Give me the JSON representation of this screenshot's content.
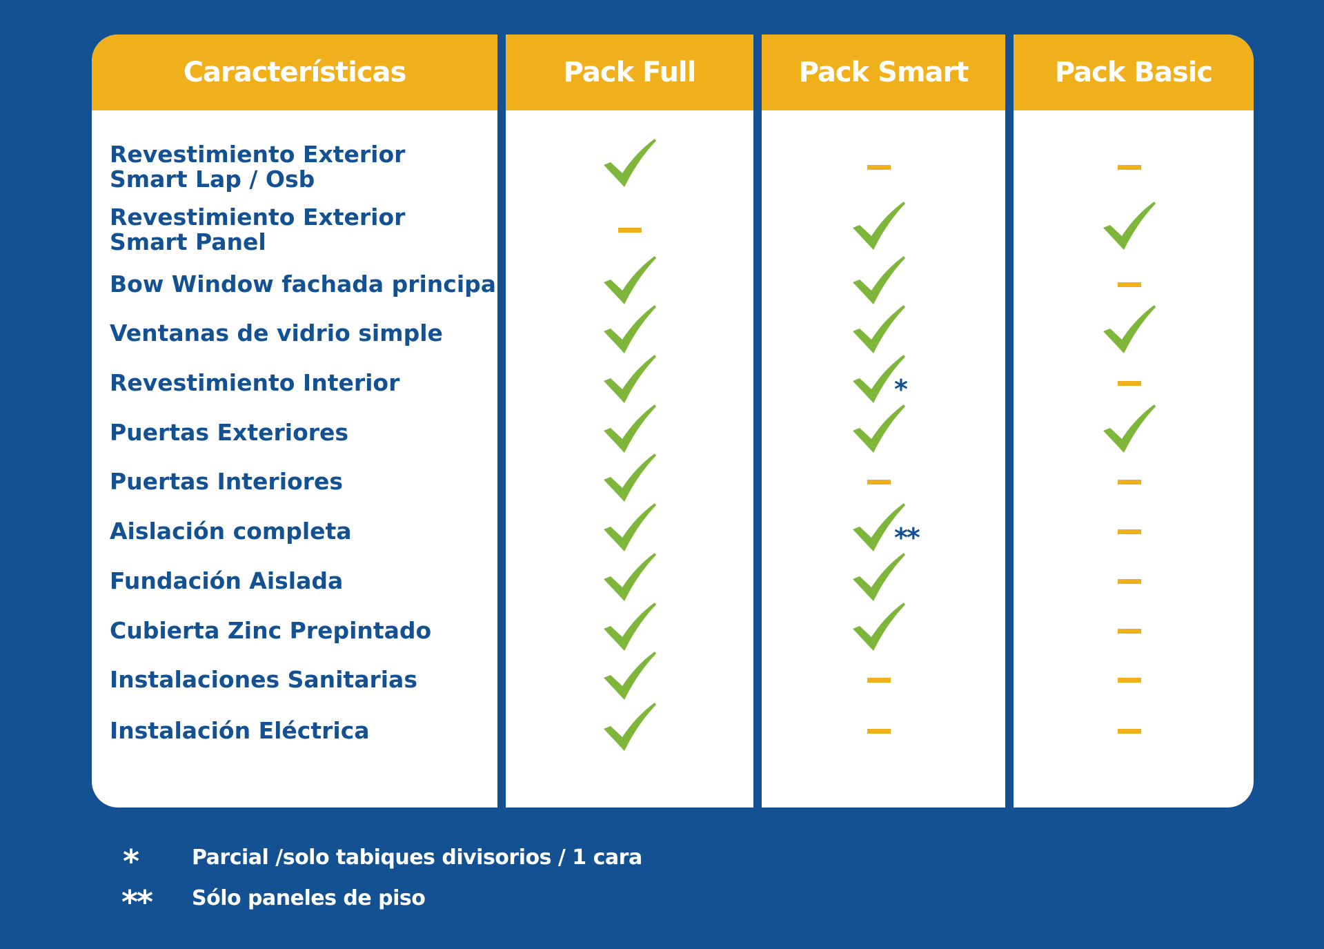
{
  "headers": [
    "Características",
    "Pack Full",
    "Pack Smart",
    "Pack Basic"
  ],
  "rows": [
    {
      "feature": [
        "Revestimiento Exterior",
        "Smart Lap / Osb"
      ],
      "full": "check",
      "smart": "dash",
      "basic": "dash"
    },
    {
      "feature": [
        "Revestimiento Exterior",
        "Smart Panel"
      ],
      "full": "dash",
      "smart": "check",
      "basic": "check"
    },
    {
      "feature": [
        "Bow Window fachada principal"
      ],
      "full": "check",
      "smart": "check",
      "basic": "dash"
    },
    {
      "feature": [
        "Ventanas de vidrio simple"
      ],
      "full": "check",
      "smart": "check",
      "basic": "check"
    },
    {
      "feature": [
        "Revestimiento Interior"
      ],
      "full": "check",
      "smart": "check",
      "smart_note": "*",
      "basic": "dash"
    },
    {
      "feature": [
        "Puertas Exteriores"
      ],
      "full": "check",
      "smart": "check",
      "basic": "check"
    },
    {
      "feature": [
        "Puertas Interiores"
      ],
      "full": "check",
      "smart": "dash",
      "basic": "dash"
    },
    {
      "feature": [
        "Aislación completa"
      ],
      "full": "check",
      "smart": "check",
      "smart_note": "**",
      "basic": "dash"
    },
    {
      "feature": [
        "Fundación Aislada"
      ],
      "full": "check",
      "smart": "check",
      "basic": "dash"
    },
    {
      "feature": [
        "Cubierta Zinc Prepintado"
      ],
      "full": "check",
      "smart": "check",
      "basic": "dash"
    },
    {
      "feature": [
        "Instalaciones Sanitarias"
      ],
      "full": "check",
      "smart": "dash",
      "basic": "dash"
    },
    {
      "feature": [
        "Instalación Eléctrica"
      ],
      "full": "check",
      "smart": "dash",
      "basic": "dash"
    }
  ],
  "legend": [
    {
      "symbol": "*",
      "text": "Parcial /solo tabiques divisorios / 1 cara"
    },
    {
      "symbol": "**",
      "text": "Sólo paneles de piso"
    }
  ],
  "colors": {
    "background": "#135192",
    "header": "#f0b01b",
    "check": "#7db63a",
    "dash": "#f0b01b",
    "text": "#135192"
  },
  "icons": {
    "check": "check-icon",
    "dash": "dash-icon"
  }
}
